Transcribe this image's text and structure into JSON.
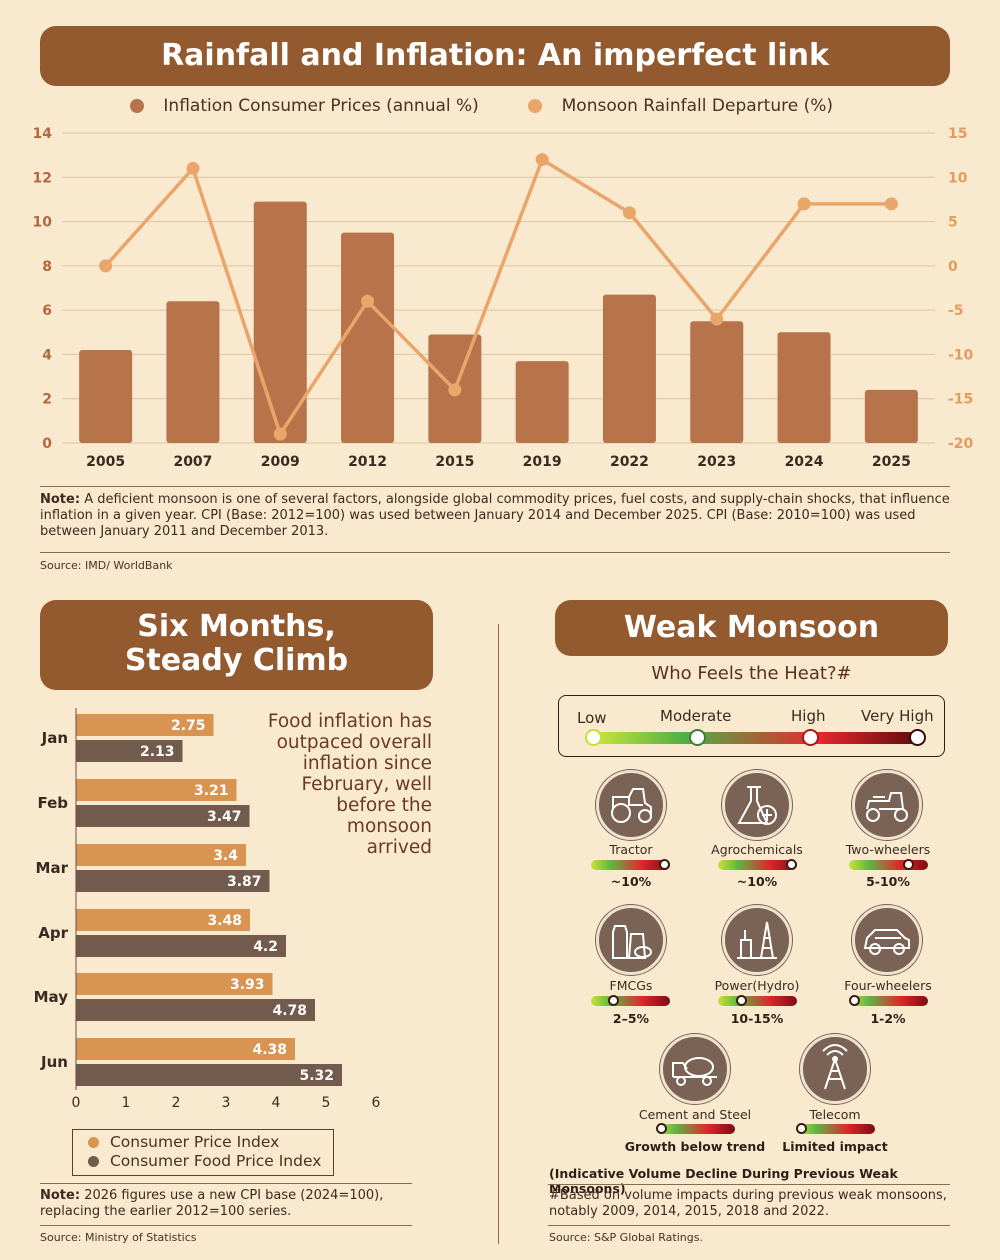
{
  "top_chart": {
    "title": "Rainfall and Inflation: An imperfect link",
    "legend": {
      "bar_label": "Inflation Consumer Prices (annual %)",
      "line_label": "Monsoon Rainfall Departure (%)"
    },
    "note_label": "Note:",
    "note_text": "A deficient monsoon is one of several factors, alongside global commodity prices, fuel costs, and supply-chain shocks, that influence inflation in a given year.  CPI (Base: 2012=100) was used between January 2014 and December 2025. CPI (Base: 2010=100) was used between January 2011 and December 2013.",
    "source": "Source: IMD/ WorldBank"
  },
  "left_panel": {
    "title_line1": "Six Months,",
    "title_line2": "Steady Climb",
    "annotation_lines": [
      "Food inflation has",
      "outpaced overall",
      "inflation since",
      "February, well",
      "before the",
      "monsoon",
      "arrived"
    ],
    "legend_cpi": "Consumer Price Index",
    "legend_food": "Consumer Food Price Index",
    "note_label": "Note:",
    "note_text": "2026 figures use a new CPI base (2024=100), replacing the earlier 2012=100 series.",
    "source": "Source: Ministry of Statistics"
  },
  "right_panel": {
    "title": "Weak Monsoon",
    "subtitle": "Who Feels the Heat?#",
    "scale_labels": [
      "Low",
      "Moderate",
      "High",
      "Very High"
    ],
    "sectors": [
      {
        "name": "Tractor",
        "value": "~10%",
        "level": 0.95,
        "icon": "tractor-icon"
      },
      {
        "name": "Agrochemicals",
        "value": "~10%",
        "level": 0.95,
        "icon": "agrochemicals-icon"
      },
      {
        "name": "Two-wheelers",
        "value": "5-10%",
        "level": 0.75,
        "icon": "scooter-icon"
      },
      {
        "name": "FMCGs",
        "value": "2–5%",
        "level": 0.25,
        "icon": "fmcg-icon"
      },
      {
        "name": "Power(Hydro)",
        "value": "10-15%",
        "level": 0.3,
        "icon": "power-plant-icon"
      },
      {
        "name": "Four-wheelers",
        "value": "1-2%",
        "level": 0.02,
        "icon": "car-icon"
      },
      {
        "name": "Cement and Steel",
        "value": "Growth below trend",
        "level": 0.02,
        "icon": "cement-mixer-icon"
      },
      {
        "name": "Telecom",
        "value": "Limited impact",
        "level": 0.02,
        "icon": "telecom-tower-icon"
      }
    ],
    "footnote": "(Indicative Volume Decline During Previous Weak Monsoons)",
    "note_text": "#Based on volume impacts during previous weak monsoons, notably 2009, 2014, 2015, 2018 and 2022.",
    "source": "Source: S&P Global Ratings."
  },
  "colors": {
    "background": "#f9e9cf",
    "banner": "#935a2f",
    "bar": "#b7734a",
    "line": "#eaa66a",
    "cpi_bar": "#d99452",
    "food_bar": "#725a4c"
  },
  "chart_data": [
    {
      "type": "bar+line",
      "categories": [
        "2005",
        "2007",
        "2009",
        "2012",
        "2015",
        "2019",
        "2022",
        "2023",
        "2024",
        "2025"
      ],
      "series": [
        {
          "name": "Inflation Consumer Prices (annual %)",
          "type": "bar",
          "axis": "left",
          "values": [
            4.2,
            6.4,
            10.9,
            9.5,
            4.9,
            3.7,
            6.7,
            5.5,
            5.0,
            2.4
          ]
        },
        {
          "name": "Monsoon Rainfall Departure (%)",
          "type": "line",
          "axis": "right",
          "values": [
            0,
            11,
            -19,
            -4,
            -14,
            12,
            6,
            -6,
            7,
            7
          ]
        }
      ],
      "ylim_left": [
        0,
        14
      ],
      "yticks_left": [
        0,
        2,
        4,
        6,
        8,
        10,
        12,
        14
      ],
      "ylim_right": [
        -20,
        15
      ],
      "yticks_right": [
        -20,
        -15,
        -10,
        -5,
        0,
        5,
        10,
        15
      ],
      "grid": true,
      "legend_position": "top"
    },
    {
      "type": "bar",
      "orientation": "horizontal",
      "categories": [
        "Jan",
        "Feb",
        "Mar",
        "Apr",
        "May",
        "Jun"
      ],
      "series": [
        {
          "name": "Consumer Price Index",
          "values": [
            2.75,
            3.21,
            3.4,
            3.48,
            3.93,
            4.38
          ]
        },
        {
          "name": "Consumer Food Price Index",
          "values": [
            2.13,
            3.47,
            3.87,
            4.2,
            4.78,
            5.32
          ]
        }
      ],
      "xlim": [
        0,
        6
      ],
      "xticks": [
        0,
        1,
        2,
        3,
        4,
        5,
        6
      ],
      "legend_position": "bottom"
    }
  ]
}
